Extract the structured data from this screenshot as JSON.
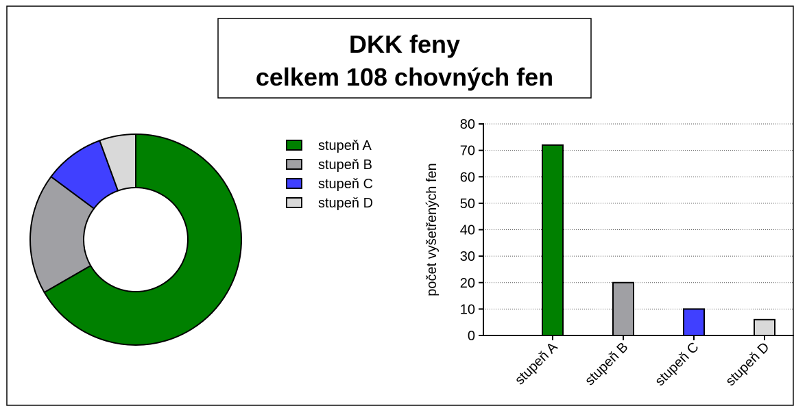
{
  "title": [
    "DKK feny",
    "celkem 108 chovných fen"
  ],
  "chart_data": [
    {
      "type": "pie",
      "categories": [
        "stupeň A",
        "stupeň B",
        "stupeň C",
        "stupeň D"
      ],
      "values": [
        72,
        20,
        10,
        6
      ],
      "colors": [
        "#008000",
        "#a0a0a4",
        "#4040ff",
        "#d9d9d9"
      ],
      "donut": true
    },
    {
      "type": "bar",
      "categories": [
        "stupeň A",
        "stupeň B",
        "stupeň C",
        "stupeň D"
      ],
      "values": [
        72,
        20,
        10,
        6
      ],
      "colors": [
        "#008000",
        "#a0a0a4",
        "#4040ff",
        "#d9d9d9"
      ],
      "y_label": "počet vyšetřených fen",
      "ylim": [
        0,
        80
      ],
      "yticks": [
        0,
        10,
        20,
        30,
        40,
        50,
        60,
        70,
        80
      ],
      "grid": true
    }
  ]
}
